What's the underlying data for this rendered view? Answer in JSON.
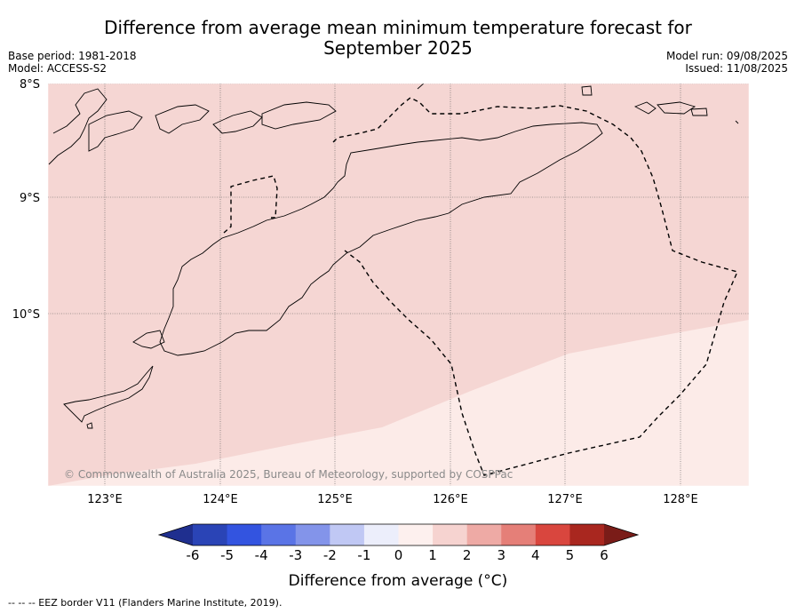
{
  "title_line1": "Difference from average mean minimum temperature forecast for",
  "title_line2": "September 2025",
  "base_period": "Base period: 1981-2018",
  "model": "Model: ACCESS-S2",
  "model_run": "Model run: 09/08/2025",
  "issued": "Issued: 11/08/2025",
  "latitude_labels": [
    "8°S",
    "9°S",
    "10°S"
  ],
  "longitude_labels": [
    "123°E",
    "124°E",
    "125°E",
    "126°E",
    "127°E",
    "128°E"
  ],
  "copyright": "© Commonwealth of Australia 2025, Bureau of Meteorology, supported by COSPPac",
  "colorbar": {
    "title": "Difference from average (°C)",
    "ticks": [
      "-6",
      "-5",
      "-4",
      "-3",
      "-2",
      "-1",
      "0",
      "1",
      "2",
      "3",
      "4",
      "5",
      "6"
    ],
    "colors": [
      "#1f2f8f",
      "#2a44b6",
      "#3354e0",
      "#5a74e6",
      "#8394ea",
      "#c0c8f4",
      "#eceefb",
      "#fdf0ee",
      "#f6d3d0",
      "#eeaaa5",
      "#e57f78",
      "#d9463e",
      "#a9271f",
      "#7a1c18"
    ]
  },
  "fields": {
    "north_fill": "#f5d6d3",
    "south_fill": "#fcebe8"
  },
  "legend_note": "--  --  -- EEZ border V11 (Flanders Marine Institute, 2019)."
}
